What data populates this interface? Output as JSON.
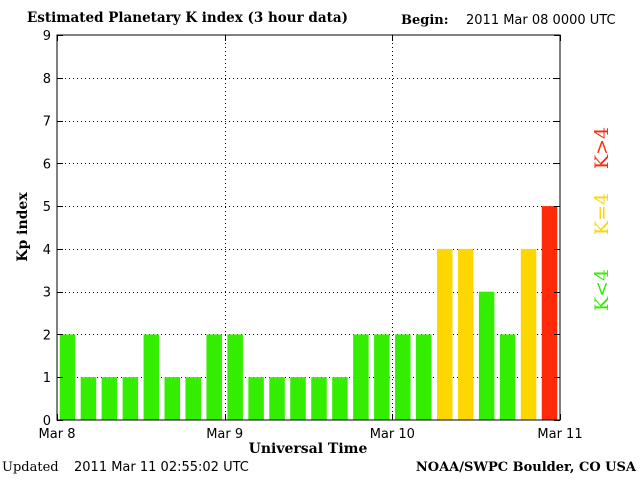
{
  "header": {
    "title": "Estimated Planetary K index (3 hour data)",
    "begin_label": "Begin:",
    "begin_value": "2011 Mar 08 0000 UTC"
  },
  "footer": {
    "updated_label": "Updated",
    "updated_value": "2011 Mar 11 02:55:02 UTC",
    "source": "NOAA/SWPC Boulder, CO USA"
  },
  "legend": {
    "items": [
      {
        "label": "K<4",
        "color": "#33ee00"
      },
      {
        "label": "K=4",
        "color": "#ffd700"
      },
      {
        "label": "K>4",
        "color": "#ff2a0a"
      }
    ]
  },
  "chart_data": {
    "type": "bar",
    "title": "Estimated Planetary K index (3 hour data)",
    "xlabel": "Universal Time",
    "ylabel": "Kp index",
    "ylim": [
      0,
      9
    ],
    "yticks": [
      0,
      1,
      2,
      3,
      4,
      5,
      6,
      7,
      8,
      9
    ],
    "xticks": [
      "Mar 8",
      "Mar 9",
      "Mar 10",
      "Mar 11"
    ],
    "grid": true,
    "bar_interval_hours": 3,
    "colors": {
      "k_below_4": "#33ee00",
      "k_equal_4": "#ffd700",
      "k_above_4": "#ff2a0a",
      "grid": "#000000"
    },
    "values": [
      2,
      1,
      1,
      1,
      2,
      1,
      1,
      2,
      2,
      1,
      1,
      1,
      1,
      1,
      2,
      2,
      2,
      2,
      4,
      4,
      3,
      2,
      4,
      5
    ]
  }
}
